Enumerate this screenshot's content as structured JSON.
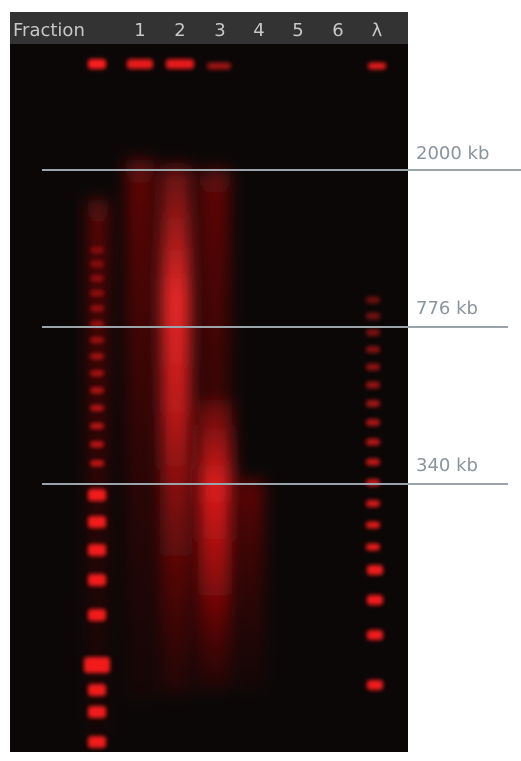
{
  "header": {
    "fraction_label": "Fraction",
    "lanes": [
      "1",
      "2",
      "3",
      "4",
      "5",
      "6",
      "λ"
    ]
  },
  "size_markers": [
    "2000 kb",
    "776 kb",
    "340 kb"
  ]
}
